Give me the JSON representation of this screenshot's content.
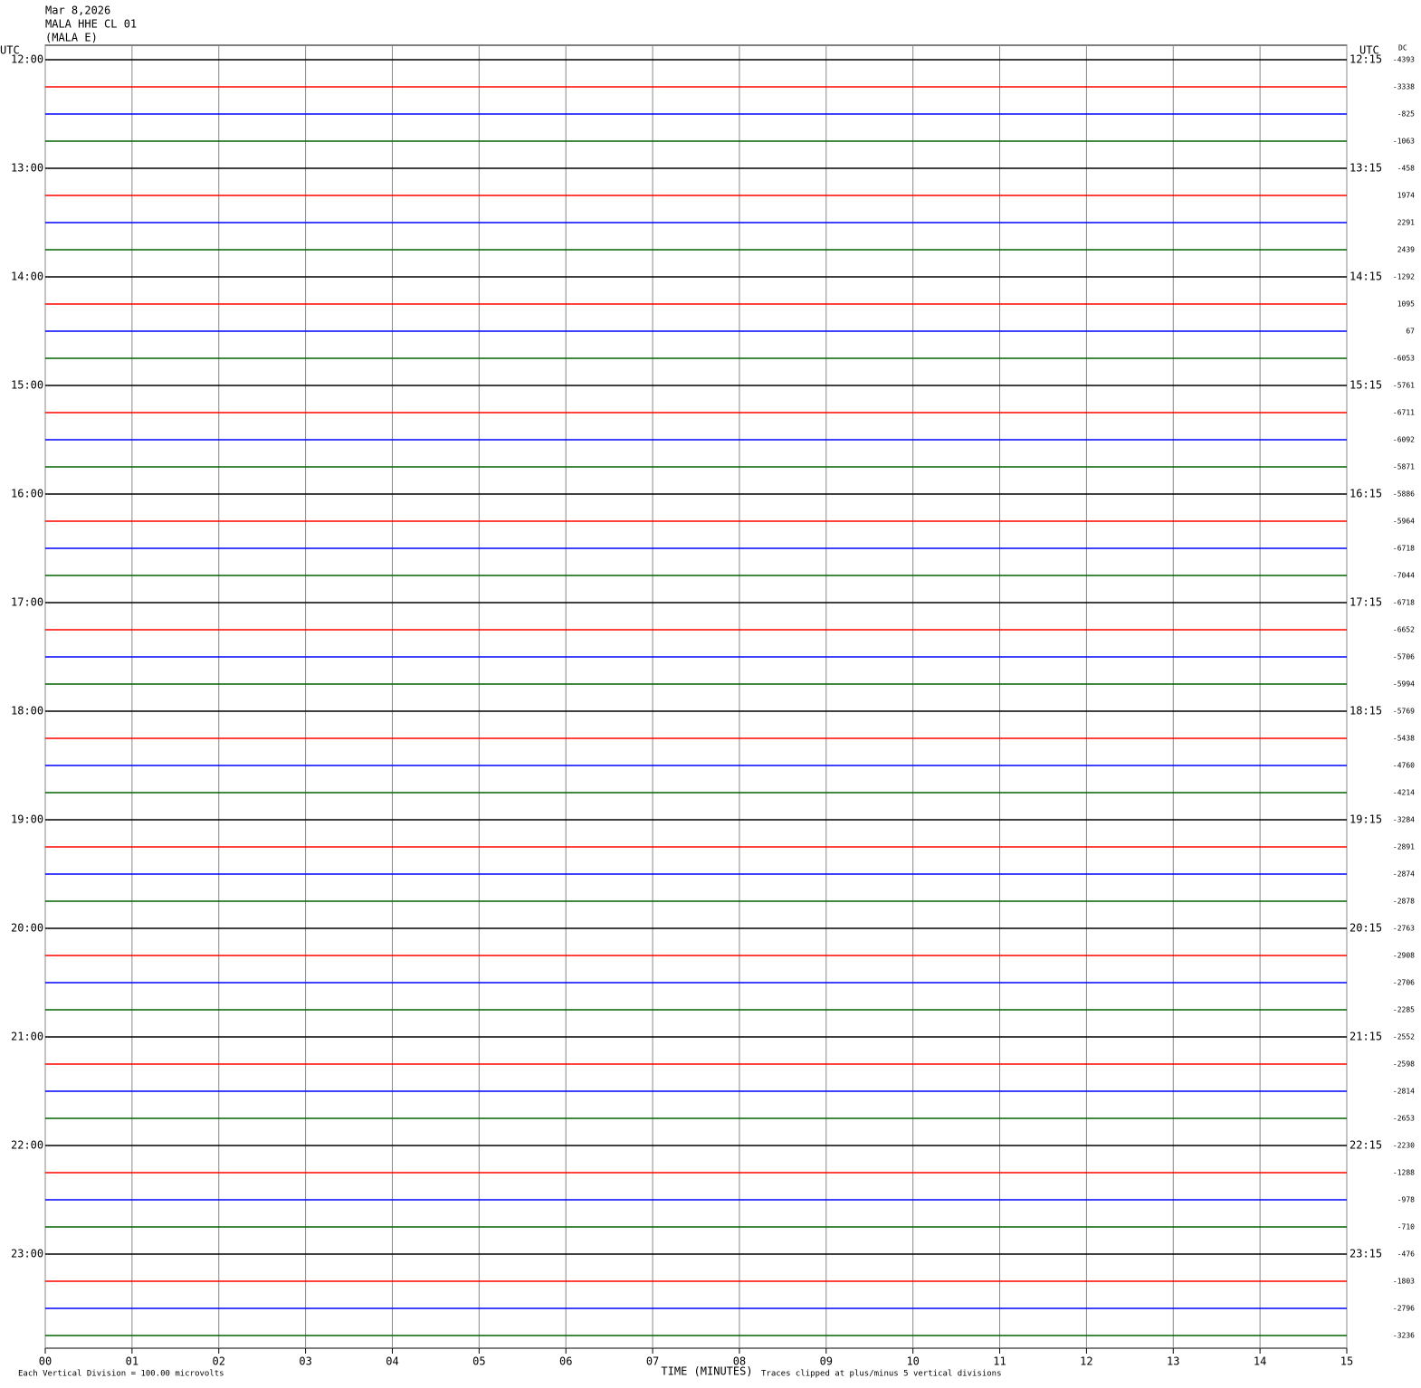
{
  "header": {
    "date": "Mar 8,2026",
    "station": "MALA HHE CL 01",
    "channel": "(MALA E)"
  },
  "left_axis": {
    "title": "UTC",
    "labels": [
      "12:00",
      "13:00",
      "14:00",
      "15:00",
      "16:00",
      "17:00",
      "18:00",
      "19:00",
      "20:00",
      "21:00",
      "22:00",
      "23:00"
    ]
  },
  "right_axis": {
    "title": "UTC",
    "dc_title": "DC",
    "labels": [
      "12:15",
      "13:15",
      "14:15",
      "15:15",
      "16:15",
      "17:15",
      "18:15",
      "19:15",
      "20:15",
      "21:15",
      "22:15",
      "23:15"
    ],
    "dc_offsets": [
      -4393,
      -3338,
      -825,
      -1063,
      -458,
      1974,
      2291,
      2439,
      -1292,
      1095,
      67,
      -6053,
      -5761,
      -6711,
      -6092,
      -5871,
      -5886,
      -5964,
      -6718,
      -7044,
      -6718,
      -6652,
      -5706,
      -5994,
      -5769,
      -5438,
      -4760,
      -4214,
      -3284,
      -2891,
      -2874,
      -2878,
      -2763,
      -2908,
      -2706,
      -2285,
      -2552,
      -2598,
      -2814,
      -2653,
      -2230,
      -1288,
      -978,
      -710,
      -476,
      -1803,
      -2796,
      -3236
    ]
  },
  "time_axis": {
    "title": "TIME (MINUTES)",
    "xlim": [
      0,
      15
    ],
    "xticks": [
      {
        "value": 0,
        "label": "00"
      },
      {
        "value": 1,
        "label": "01"
      },
      {
        "value": 2,
        "label": "02"
      },
      {
        "value": 3,
        "label": "03"
      },
      {
        "value": 4,
        "label": "04"
      },
      {
        "value": 5,
        "label": "05"
      },
      {
        "value": 6,
        "label": "06"
      },
      {
        "value": 7,
        "label": "07"
      },
      {
        "value": 8,
        "label": "08"
      },
      {
        "value": 9,
        "label": "09"
      },
      {
        "value": 10,
        "label": "10"
      },
      {
        "value": 11,
        "label": "11"
      },
      {
        "value": 12,
        "label": "12"
      },
      {
        "value": 13,
        "label": "13"
      },
      {
        "value": 14,
        "label": "14"
      },
      {
        "value": 15,
        "label": "15"
      }
    ]
  },
  "footer": {
    "scale_note": "Each Vertical Division =  100.00 microvolts",
    "clip_note": "Traces clipped at plus/minus 5 vertical divisions"
  },
  "trace_colors": [
    "#000000",
    "#ff0000",
    "#0000ff",
    "#006400"
  ]
}
